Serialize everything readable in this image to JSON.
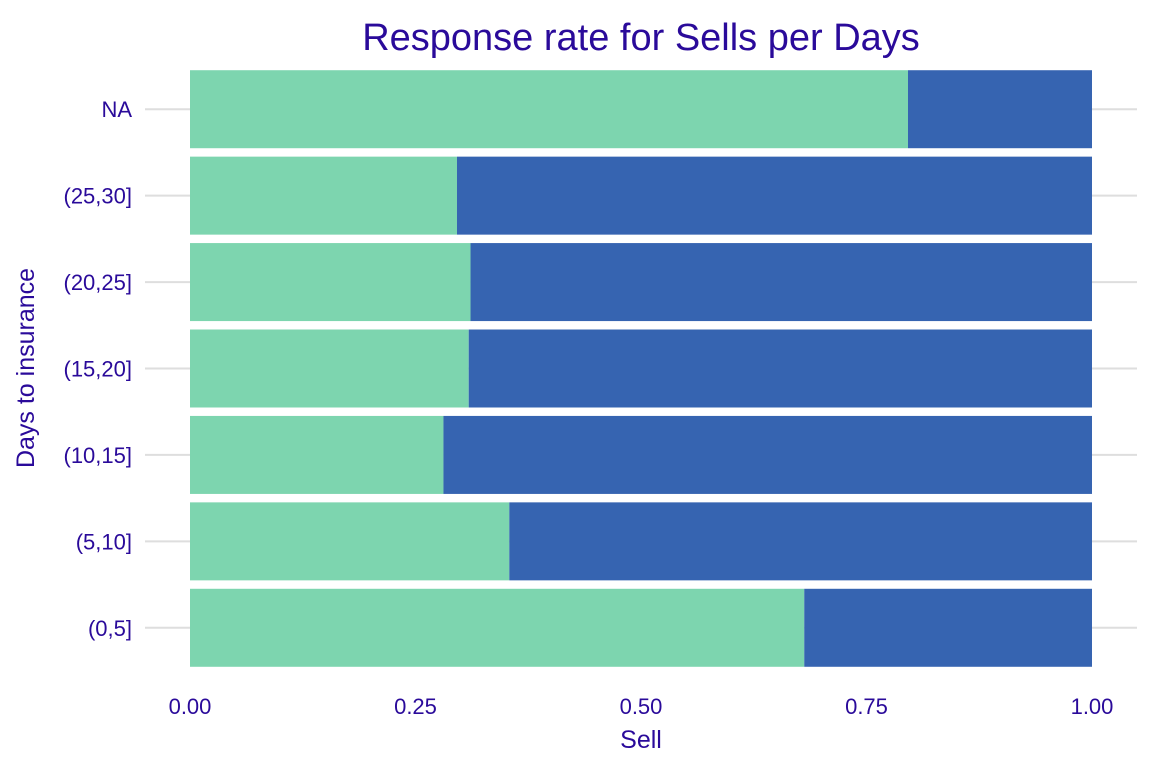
{
  "colors": {
    "text": "#2a0a9a",
    "grid": "#dedede",
    "background": "#ffffff"
  },
  "chart_data": {
    "type": "bar",
    "orientation": "horizontal",
    "stacked": true,
    "title": "Response rate for Sells per Days",
    "xlabel": "Sell",
    "ylabel": "Days to insurance",
    "xlim": [
      0,
      1
    ],
    "x_ticks": [
      0,
      0.25,
      0.5,
      0.75,
      1
    ],
    "x_tick_labels": [
      "0.00",
      "0.25",
      "0.50",
      "0.75",
      "1.00"
    ],
    "categories": [
      "NA",
      "(25,30]",
      "(20,25]",
      "(15,20]",
      "(10,15]",
      "(5,10]",
      "(0,5]"
    ],
    "series": [
      {
        "color": "#7dd5af",
        "values": [
          0.796,
          0.296,
          0.311,
          0.309,
          0.281,
          0.354,
          0.681
        ]
      },
      {
        "color": "#3664b1",
        "values": [
          0.204,
          0.704,
          0.689,
          0.691,
          0.719,
          0.646,
          0.319
        ]
      }
    ],
    "grid": true,
    "legend": "none"
  }
}
